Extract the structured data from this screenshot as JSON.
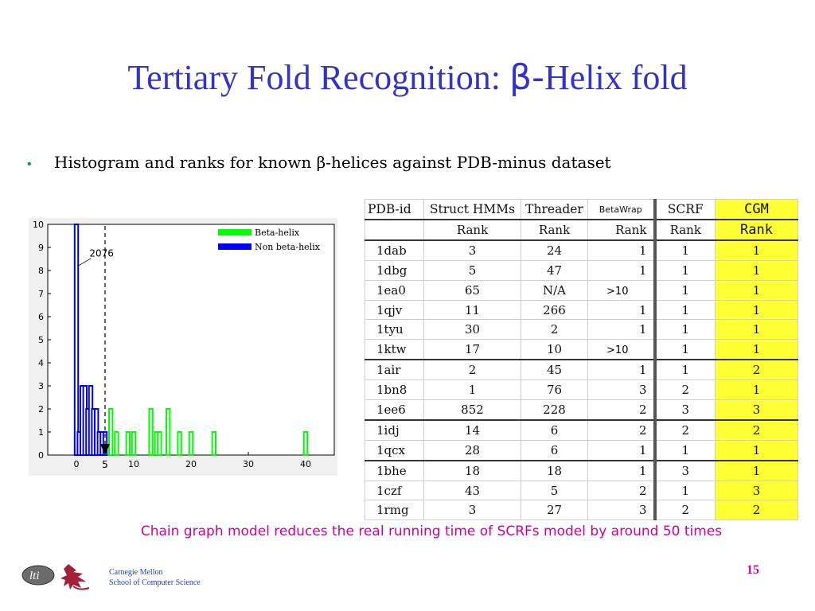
{
  "slide": {
    "title_main": "Tertiary Fold Recognition: ",
    "title_beta": "β-",
    "title_tail": "Helix fold",
    "bullet_symbol": "•",
    "bullet_text": "Histogram and ranks for known β-helices against PDB-minus dataset",
    "note": "Chain graph model reduces the real running time of SCRFs model by around 50 times",
    "footer_org": "Carnegie Mellon",
    "footer_school": "School of Computer Science",
    "page_number": "15",
    "logo_text": "lti"
  },
  "chart_data": {
    "type": "bar",
    "xlim": [
      -5,
      45
    ],
    "ylim": [
      0,
      10
    ],
    "x_ticks": [
      0,
      10,
      20,
      30,
      40
    ],
    "y_ticks": [
      0,
      1,
      2,
      3,
      4,
      5,
      6,
      7,
      8,
      9,
      10
    ],
    "legend_position": "top-right",
    "series": [
      {
        "name": "Beta-helix",
        "color": "#00ff00",
        "x": [
          6,
          7,
          9,
          10,
          13,
          14,
          14.5,
          16,
          18,
          20,
          24,
          40
        ],
        "values": [
          2,
          1,
          1,
          1,
          2,
          1,
          1,
          2,
          1,
          1,
          1,
          1
        ]
      },
      {
        "name": "Non beta-helix",
        "color": "#0000ff",
        "x": [
          0,
          0.5,
          1,
          1.5,
          2,
          2.5,
          3,
          3.5,
          4,
          4.5,
          5
        ],
        "values": [
          10,
          1,
          3,
          3,
          2,
          3,
          2,
          2,
          1,
          1,
          1
        ]
      }
    ],
    "annotations": [
      {
        "text": "2076",
        "x": 2,
        "y": 8.7
      },
      {
        "text": "5",
        "x": 5,
        "y": -0.4
      }
    ]
  },
  "table": {
    "headers": [
      "PDB-id",
      "Struct HMMs",
      "Threader",
      "BetaWrap",
      "SCRF",
      "CGM"
    ],
    "subheaders": [
      "",
      "Rank",
      "Rank",
      "Rank",
      "Rank",
      "Rank"
    ],
    "rows": [
      [
        "1dab",
        "3",
        "24",
        "1",
        "1",
        "1"
      ],
      [
        "1dbg",
        "5",
        "47",
        "1",
        "1",
        "1"
      ],
      [
        "1ea0",
        "65",
        "N/A",
        ">10",
        "1",
        "1"
      ],
      [
        "1qjv",
        "11",
        "266",
        "1",
        "1",
        "1"
      ],
      [
        "1tyu",
        "30",
        "2",
        "1",
        "1",
        "1"
      ],
      [
        "1ktw",
        "17",
        "10",
        ">10",
        "1",
        "1"
      ],
      [
        "1air",
        "2",
        "45",
        "1",
        "1",
        "2"
      ],
      [
        "1bn8",
        "1",
        "76",
        "3",
        "2",
        "1"
      ],
      [
        "1ee6",
        "852",
        "228",
        "2",
        "3",
        "3"
      ],
      [
        "1idj",
        "14",
        "6",
        "2",
        "2",
        "2"
      ],
      [
        "1qcx",
        "28",
        "6",
        "1",
        "1",
        "1"
      ],
      [
        "1bhe",
        "18",
        "18",
        "1",
        "3",
        "1"
      ],
      [
        "1czf",
        "43",
        "5",
        "2",
        "1",
        "3"
      ],
      [
        "1rmg",
        "3",
        "27",
        "3",
        "2",
        "2"
      ]
    ],
    "group_starts": [
      6,
      9,
      11
    ]
  },
  "colors": {
    "title": "#3333cc",
    "note": "#cc0099",
    "highlight": "#ffff33",
    "beta_helix": "#00ff00",
    "non_beta_helix": "#0000ff"
  }
}
